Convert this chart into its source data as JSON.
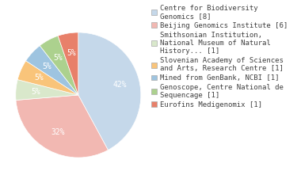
{
  "labels": [
    "Centre for Biodiversity\nGenomics [8]",
    "Beijing Genomics Institute [6]",
    "Smithsonian Institution,\nNational Museum of Natural\nHistory... [1]",
    "Slovenian Academy of Sciences\nand Arts, Research Centre [1]",
    "Mined from GenBank, NCBI [1]",
    "Genoscope, Centre National de\nSequencage [1]",
    "Eurofins Medigenomix [1]"
  ],
  "values": [
    8,
    6,
    1,
    1,
    1,
    1,
    1
  ],
  "colors": [
    "#c5d8ea",
    "#f2b8b2",
    "#d9e8cb",
    "#f9c47a",
    "#9ec4e0",
    "#acd18e",
    "#e8806a"
  ],
  "startangle": 90,
  "bg_color": "#ffffff",
  "text_color": "#404040",
  "fontsize": 6.5,
  "pct_fontsize": 7.0
}
